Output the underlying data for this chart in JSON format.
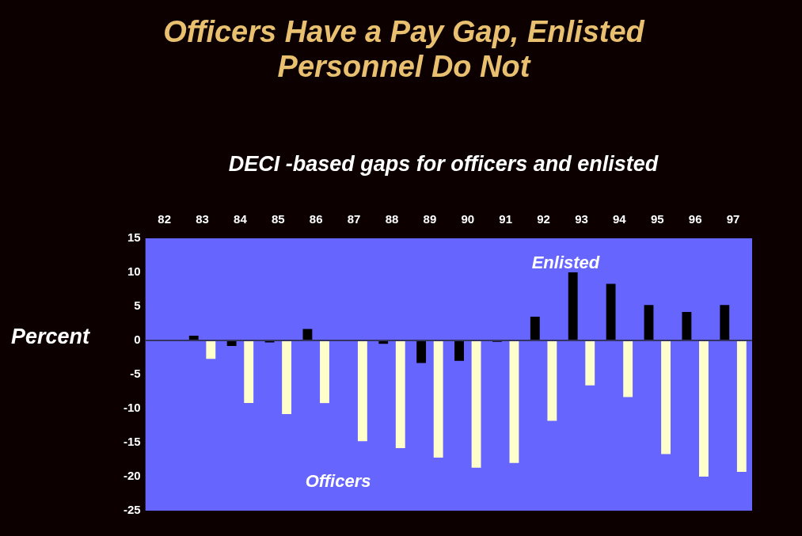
{
  "chart_data": {
    "type": "bar",
    "title": "Officers Have a Pay Gap, Enlisted Personnel Do Not",
    "subtitle": "DECI -based gaps for officers and enlisted",
    "ylabel": "Percent",
    "categories": [
      "82",
      "83",
      "84",
      "85",
      "86",
      "87",
      "88",
      "89",
      "90",
      "91",
      "92",
      "93",
      "94",
      "95",
      "96",
      "97"
    ],
    "series": [
      {
        "name": "Enlisted",
        "color": "#000000",
        "values": [
          0,
          0.7,
          -0.8,
          -0.3,
          1.7,
          0,
          -0.5,
          -3.3,
          -3,
          -0.2,
          3.5,
          10,
          8.3,
          5.2,
          4.2,
          5.2
        ]
      },
      {
        "name": "Officers",
        "color": "#ffffcc",
        "values": [
          null,
          -2.7,
          -9.2,
          -10.8,
          -9.2,
          -14.8,
          -15.8,
          -17.2,
          -18.7,
          -18,
          -11.8,
          -6.6,
          -8.3,
          -16.7,
          -20,
          -19.3
        ]
      }
    ],
    "ylim": [
      -25,
      15
    ],
    "yticks": [
      -25,
      -20,
      -15,
      -10,
      -5,
      0,
      5,
      10,
      15
    ],
    "grid": false,
    "legend": false,
    "ref_lines": [
      {
        "axis": "y",
        "value": 0,
        "color": "#333366"
      }
    ]
  }
}
